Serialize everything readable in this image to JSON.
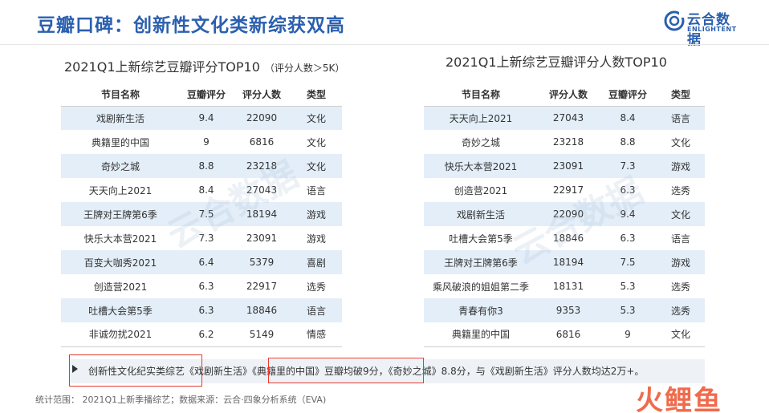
{
  "header": {
    "title": "豆瓣口碑：创新性文化类新综获双高",
    "logo_cn": "云合数据",
    "logo_en": "ENLIGHTENT"
  },
  "left_table": {
    "caption": "2021Q1上新综艺豆瓣评分TOP10",
    "caption_note": "（评分人数＞5K）",
    "headers": [
      "节目名称",
      "豆瓣评分",
      "评分人数",
      "类型"
    ],
    "rows": [
      [
        "戏剧新生活",
        "9.4",
        "22090",
        "文化"
      ],
      [
        "典籍里的中国",
        "9",
        "6816",
        "文化"
      ],
      [
        "奇妙之城",
        "8.8",
        "23218",
        "文化"
      ],
      [
        "天天向上2021",
        "8.4",
        "27043",
        "语言"
      ],
      [
        "王牌对王牌第6季",
        "7.5",
        "18194",
        "游戏"
      ],
      [
        "快乐大本营2021",
        "7.3",
        "23091",
        "游戏"
      ],
      [
        "百变大咖秀2021",
        "6.4",
        "5379",
        "喜剧"
      ],
      [
        "创造营2021",
        "6.3",
        "22917",
        "选秀"
      ],
      [
        "吐槽大会第5季",
        "6.3",
        "18846",
        "语言"
      ],
      [
        "非诚勿扰2021",
        "6.2",
        "5149",
        "情感"
      ]
    ]
  },
  "right_table": {
    "caption": "2021Q1上新综艺豆瓣评分人数TOP10",
    "headers": [
      "节目名称",
      "评分人数",
      "豆瓣评分",
      "类型"
    ],
    "rows": [
      [
        "天天向上2021",
        "27043",
        "8.4",
        "语言"
      ],
      [
        "奇妙之城",
        "23218",
        "8.8",
        "文化"
      ],
      [
        "快乐大本营2021",
        "23091",
        "7.3",
        "游戏"
      ],
      [
        "创造营2021",
        "22917",
        "6.3",
        "选秀"
      ],
      [
        "戏剧新生活",
        "22090",
        "9.4",
        "文化"
      ],
      [
        "吐槽大会第5季",
        "18846",
        "6.3",
        "语言"
      ],
      [
        "王牌对王牌第6季",
        "18194",
        "7.5",
        "游戏"
      ],
      [
        "乘风破浪的姐姐第二季",
        "18131",
        "5.3",
        "选秀"
      ],
      [
        "青春有你3",
        "9353",
        "5.3",
        "选秀"
      ],
      [
        "典籍里的中国",
        "6816",
        "9",
        "文化"
      ]
    ]
  },
  "summary": "创新性文化纪实类综艺《戏剧新生活》《典籍里的中国》豆瓣均破9分，《奇妙之城》8.8分，与《戏剧新生活》评分人数均达2万+。",
  "footer": {
    "note": "统计范围：  2021Q1上新季播综艺；数据来源：云合·四象分析系统（EVA)",
    "brand": "火鲤鱼"
  },
  "colors": {
    "title_blue": "#2b5faf",
    "row_stripe": "#e3eef8",
    "highlight_red": "#e63a2f",
    "brand_orange": "#f06b4c"
  }
}
